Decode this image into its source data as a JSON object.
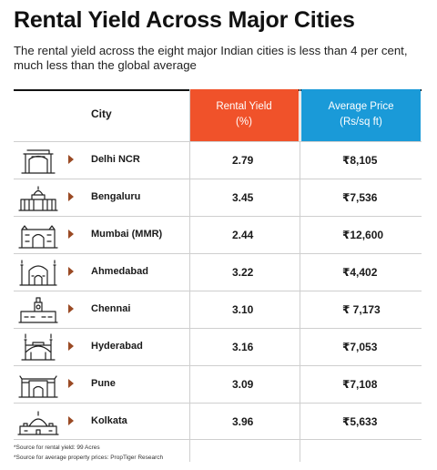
{
  "title": "Rental Yield Across Major Cities",
  "subtitle": "The rental yield across the eight major Indian cities is less than 4 per cent, much less than the global average",
  "chart_data": {
    "type": "table",
    "columns": [
      "City",
      "Rental Yield (%)",
      "Average Price (Rs/sq ft)"
    ],
    "header": {
      "city": "City",
      "yield_line1": "Rental Yield",
      "yield_line2": "(%)",
      "price_line1": "Average Price",
      "price_line2": "(Rs/sq ft)"
    },
    "rows": [
      {
        "city": "Delhi NCR",
        "yield": "2.79",
        "price": "₹8,105",
        "icon": "india-gate-icon"
      },
      {
        "city": "Bengaluru",
        "yield": "3.45",
        "price": "₹7,536",
        "icon": "vidhana-soudha-icon"
      },
      {
        "city": "Mumbai (MMR)",
        "yield": "2.44",
        "price": "₹12,600",
        "icon": "gateway-of-india-icon"
      },
      {
        "city": "Ahmedabad",
        "yield": "3.22",
        "price": "₹4,402",
        "icon": "mosque-icon"
      },
      {
        "city": "Chennai",
        "yield": "3.10",
        "price": "₹ 7,173",
        "icon": "central-station-icon"
      },
      {
        "city": "Hyderabad",
        "yield": "3.16",
        "price": "₹7,053",
        "icon": "charminar-icon"
      },
      {
        "city": "Pune",
        "yield": "3.09",
        "price": "₹7,108",
        "icon": "shaniwar-wada-icon"
      },
      {
        "city": "Kolkata",
        "yield": "3.96",
        "price": "₹5,633",
        "icon": "victoria-memorial-icon"
      }
    ]
  },
  "footnotes": [
    "*Source for rental yield: 99 Acres",
    "*Source for average property prices: PropTiger Research"
  ],
  "colors": {
    "yield_header": "#f0522a",
    "price_header": "#1a9ad8",
    "arrow": "#9a4a24"
  }
}
